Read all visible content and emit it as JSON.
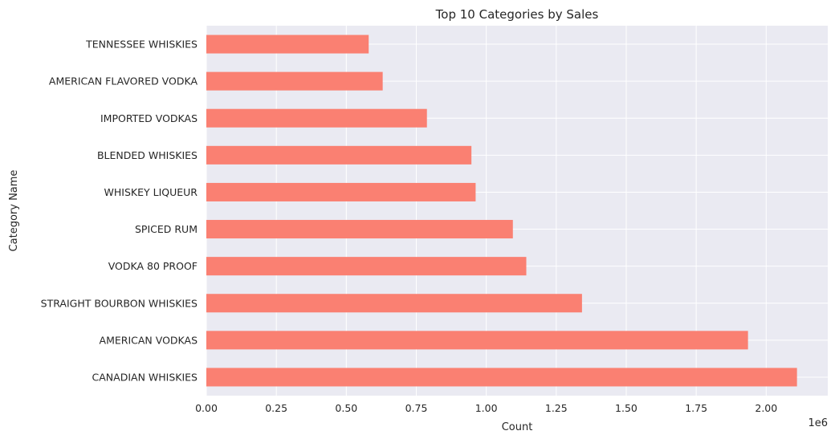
{
  "chart_data": {
    "type": "bar",
    "orientation": "horizontal",
    "title": "Top 10 Categories by Sales",
    "xlabel": "Count",
    "ylabel": "Category Name",
    "x_offset_label": "1e6",
    "x_multiplier": 1000000,
    "xlim": [
      0,
      2.22
    ],
    "xticks": [
      0,
      0.25,
      0.5,
      0.75,
      1.0,
      1.25,
      1.5,
      1.75,
      2.0
    ],
    "xtick_labels": [
      "0.00",
      "0.25",
      "0.50",
      "0.75",
      "1.00",
      "1.25",
      "1.50",
      "1.75",
      "2.00"
    ],
    "categories": [
      "CANADIAN WHISKIES",
      "AMERICAN VODKAS",
      "STRAIGHT BOURBON WHISKIES",
      "VODKA 80 PROOF",
      "SPICED RUM",
      "WHISKEY LIQUEUR",
      "BLENDED WHISKIES",
      "IMPORTED VODKAS",
      "AMERICAN FLAVORED VODKA",
      "TENNESSEE WHISKIES"
    ],
    "values": [
      2110000,
      1935000,
      1342000,
      1143000,
      1095000,
      962000,
      947000,
      788000,
      630000,
      580000
    ],
    "bar_color": "#fa8072",
    "background_color": "#eaeaf2",
    "grid": true,
    "legend": "none"
  }
}
